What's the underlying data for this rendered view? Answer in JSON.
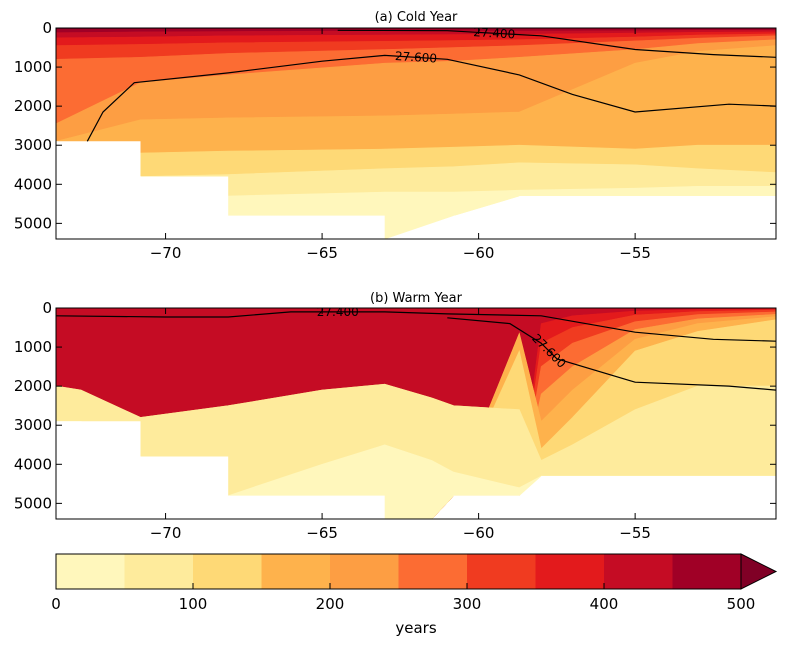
{
  "chart_data": [
    {
      "type": "heatmap",
      "subtype": "filled-contour-section",
      "title": "(a) Cold Year",
      "xlim": [
        -73.5,
        -50.5
      ],
      "ylim": [
        5400,
        0
      ],
      "y_inverted": true,
      "x_ticks": [
        -70,
        -65,
        -60,
        -55
      ],
      "x_tick_labels": [
        "−70",
        "−65",
        "−60",
        "−55"
      ],
      "y_ticks": [
        0,
        1000,
        2000,
        3000,
        4000,
        5000
      ],
      "y_tick_labels": [
        "0",
        "1000",
        "2000",
        "3000",
        "4000",
        "5000"
      ],
      "x_grid": [
        -73.5,
        -70.8,
        -68,
        -63,
        -60.8,
        -58.7,
        -55,
        -53,
        -50.5
      ],
      "bottom_depth": [
        2900,
        3800,
        4800,
        5400,
        4800,
        4300,
        4300,
        4300,
        4300
      ],
      "boundary_depths": [
        [
          40,
          30,
          25,
          20,
          20,
          20,
          20,
          15,
          15
        ],
        [
          120,
          100,
          90,
          80,
          80,
          80,
          70,
          60,
          60
        ],
        [
          250,
          230,
          200,
          180,
          170,
          160,
          130,
          110,
          100
        ],
        [
          450,
          420,
          380,
          340,
          320,
          300,
          230,
          180,
          150
        ],
        [
          800,
          750,
          650,
          550,
          500,
          450,
          330,
          260,
          200
        ],
        [
          2450,
          1400,
          1200,
          900,
          850,
          750,
          550,
          400,
          300
        ],
        [
          9999,
          2350,
          2300,
          2250,
          2200,
          2150,
          900,
          600,
          450
        ],
        [
          9999,
          3200,
          3150,
          3100,
          3050,
          3000,
          3100,
          3000,
          3000
        ],
        [
          9999,
          3900,
          3750,
          3600,
          3550,
          3450,
          3500,
          3600,
          3700
        ],
        [
          9999,
          9999,
          4300,
          4200,
          4200,
          4150,
          4100,
          4050,
          4050
        ],
        [
          9999,
          9999,
          9999,
          4850,
          4800,
          4650,
          9999,
          9999,
          9999
        ]
      ],
      "contours": [
        {
          "label": "27.400",
          "x": [
            -64.5,
            -61,
            -58,
            -55,
            -52.5,
            -50.5
          ],
          "y": [
            60,
            70,
            200,
            550,
            680,
            750
          ]
        },
        {
          "label": "27.600",
          "x": [
            -72.5,
            -72,
            -71,
            -68,
            -65,
            -63,
            -61,
            -58.7,
            -57,
            -55,
            -52,
            -50.5
          ],
          "y": [
            2900,
            2150,
            1400,
            1150,
            850,
            700,
            800,
            1200,
            1700,
            2150,
            1950,
            2000
          ]
        }
      ]
    },
    {
      "type": "heatmap",
      "subtype": "filled-contour-section",
      "title": "(b) Warm Year",
      "xlim": [
        -73.5,
        -50.5
      ],
      "ylim": [
        5400,
        0
      ],
      "y_inverted": true,
      "x_ticks": [
        -70,
        -65,
        -60,
        -55
      ],
      "x_tick_labels": [
        "−70",
        "−65",
        "−60",
        "−55"
      ],
      "y_ticks": [
        0,
        1000,
        2000,
        3000,
        4000,
        5000
      ],
      "y_tick_labels": [
        "0",
        "1000",
        "2000",
        "3000",
        "4000",
        "5000"
      ],
      "x_grid": [
        -73.5,
        -72.7,
        -70.8,
        -68,
        -65,
        -63,
        -61.5,
        -60.8,
        -58.7,
        -58,
        -57,
        -55,
        -53,
        -50.5
      ],
      "bottom_depth": [
        2900,
        2900,
        3800,
        4800,
        4800,
        5400,
        5400,
        4800,
        4800,
        4300,
        4300,
        4300,
        4300,
        4300
      ],
      "boundary_depths": [
        [
          9999,
          9999,
          9999,
          9999,
          9999,
          9999,
          9999,
          9999,
          9999,
          400,
          200,
          80,
          40,
          20
        ],
        [
          9999,
          9999,
          9999,
          9999,
          9999,
          9999,
          9999,
          9999,
          9999,
          900,
          500,
          180,
          90,
          50
        ],
        [
          9999,
          9999,
          9999,
          9999,
          9999,
          9999,
          9999,
          9999,
          9999,
          1500,
          900,
          350,
          170,
          100
        ],
        [
          9999,
          9999,
          9999,
          9999,
          9999,
          9999,
          9999,
          9999,
          9999,
          2200,
          1500,
          550,
          280,
          160
        ],
        [
          9999,
          9999,
          9999,
          9999,
          9999,
          9999,
          9999,
          9999,
          650,
          2900,
          2100,
          800,
          400,
          220
        ],
        [
          9999,
          9999,
          9999,
          9999,
          9999,
          9999,
          9999,
          9999,
          1100,
          3600,
          2800,
          1100,
          600,
          300
        ],
        [
          2000,
          2100,
          2800,
          2500,
          2100,
          1950,
          2300,
          2500,
          2600,
          3900,
          3500,
          2600,
          2000,
          2000
        ],
        [
          9999,
          9999,
          9999,
          9999,
          4000,
          3500,
          3900,
          4200,
          4600,
          9999,
          9999,
          9999,
          9999,
          9999
        ]
      ],
      "level_offset": 0,
      "contours": [
        {
          "label": "27.400",
          "x": [
            -73.5,
            -70,
            -68,
            -66,
            -63,
            -61,
            -58,
            -55,
            -52.5,
            -50.5
          ],
          "y": [
            200,
            230,
            230,
            100,
            100,
            150,
            200,
            620,
            800,
            850
          ]
        },
        {
          "label": "27.600",
          "x": [
            -61,
            -59,
            -58,
            -57.5,
            -55,
            -52,
            -50.5
          ],
          "y": [
            250,
            400,
            900,
            1300,
            1900,
            2000,
            2100
          ]
        }
      ]
    }
  ],
  "colorbar": {
    "levels": [
      0,
      50,
      100,
      150,
      200,
      250,
      300,
      350,
      400,
      450,
      500
    ],
    "tick_labels": [
      "0",
      "100",
      "200",
      "300",
      "400",
      "500"
    ],
    "tick_values": [
      0,
      100,
      200,
      300,
      400,
      500
    ],
    "extend": "max",
    "label": "years",
    "colors": [
      "#fff7bc",
      "#feeb9c",
      "#fed976",
      "#feb24c",
      "#fd9e43",
      "#fc6c33",
      "#f03b20",
      "#e31a1c",
      "#c50c24",
      "#a00026",
      "#800026"
    ]
  }
}
